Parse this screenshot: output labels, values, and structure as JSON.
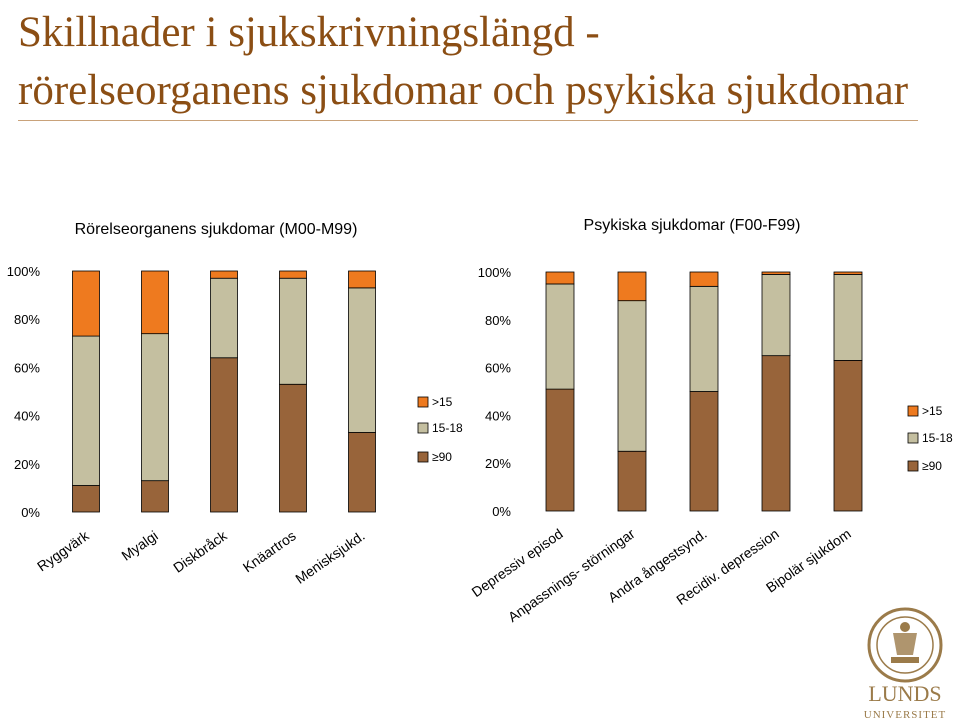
{
  "title_line1": "Skillnader i sjukskrivningslängd -",
  "title_line2": "rörelseorganens sjukdomar och psykiska sjukdomar",
  "chart_data": [
    {
      "type": "bar",
      "stacked": true,
      "title": "Rörelseorganens sjukdomar (M00-M99)",
      "categories": [
        "Ryggvärk",
        "Myalgi",
        "Diskbråck",
        "Knäartros",
        "Menisksjukd."
      ],
      "series": [
        {
          "name": "≥90",
          "color": "#98643A",
          "values": [
            11,
            13,
            64,
            53,
            33
          ]
        },
        {
          "name": "15-18",
          "color": "#C4BFA0",
          "values": [
            62,
            61,
            33,
            44,
            60
          ]
        },
        {
          "name": ">15",
          "color": "#EE7A1F",
          "values": [
            27,
            26,
            3,
            3,
            7
          ]
        }
      ],
      "ylim": [
        0,
        100
      ],
      "yticks": [
        "0%",
        "20%",
        "40%",
        "60%",
        "80%",
        "100%"
      ],
      "legend": "right",
      "grid": false
    },
    {
      "type": "bar",
      "stacked": true,
      "title": "Psykiska sjukdomar (F00-F99)",
      "categories": [
        "Depressiv episod",
        "Anpassnings- störningar",
        "Andra ångestsynd.",
        "Recidiv. depression",
        "Bipolär sjukdom"
      ],
      "series": [
        {
          "name": "≥90",
          "color": "#98643A",
          "values": [
            51,
            25,
            50,
            65,
            63
          ]
        },
        {
          "name": "15-18",
          "color": "#C4BFA0",
          "values": [
            44,
            63,
            44,
            34,
            36
          ]
        },
        {
          "name": ">15",
          "color": "#EE7A1F",
          "values": [
            5,
            12,
            6,
            1,
            1
          ]
        }
      ],
      "ylim": [
        0,
        100
      ],
      "yticks": [
        "0%",
        "20%",
        "40%",
        "60%",
        "80%",
        "100%"
      ],
      "legend": "right",
      "grid": false
    }
  ],
  "logo": {
    "text": "LUNDS UNIVERSITET",
    "color": "#9B7B4A"
  }
}
